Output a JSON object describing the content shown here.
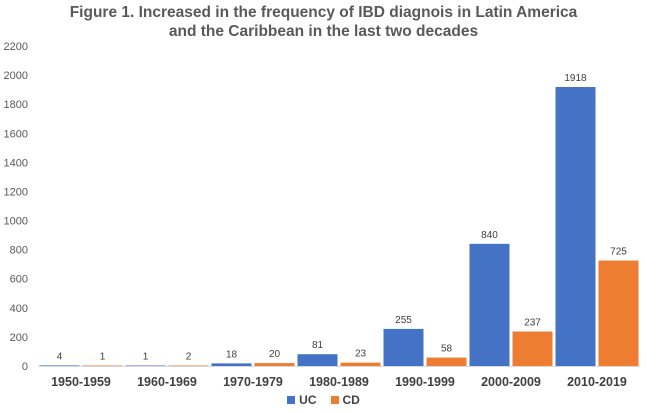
{
  "title_line1": "Figure 1. Increased in the frequency of IBD diagnois in Latin America",
  "title_line2": "and the Caribbean in the last two decades",
  "chart_data": {
    "type": "bar",
    "title": "Figure 1. Increased in the frequency of IBD diagnois in Latin America and the Caribbean in the last two decades",
    "categories": [
      "1950-1959",
      "1960-1969",
      "1970-1979",
      "1980-1989",
      "1990-1999",
      "2000-2009",
      "2010-2019"
    ],
    "series": [
      {
        "name": "UC",
        "color": "#4472C4",
        "values": [
          4,
          1,
          18,
          81,
          255,
          840,
          1918
        ]
      },
      {
        "name": "CD",
        "color": "#ED7D31",
        "values": [
          1,
          2,
          20,
          23,
          58,
          237,
          725
        ]
      }
    ],
    "ylim": [
      0,
      2200
    ],
    "yticks": [
      0,
      200,
      400,
      600,
      800,
      1000,
      1200,
      1400,
      1600,
      1800,
      2000,
      2200
    ],
    "grid": false,
    "legend_position": "bottom",
    "data_labels": true
  }
}
